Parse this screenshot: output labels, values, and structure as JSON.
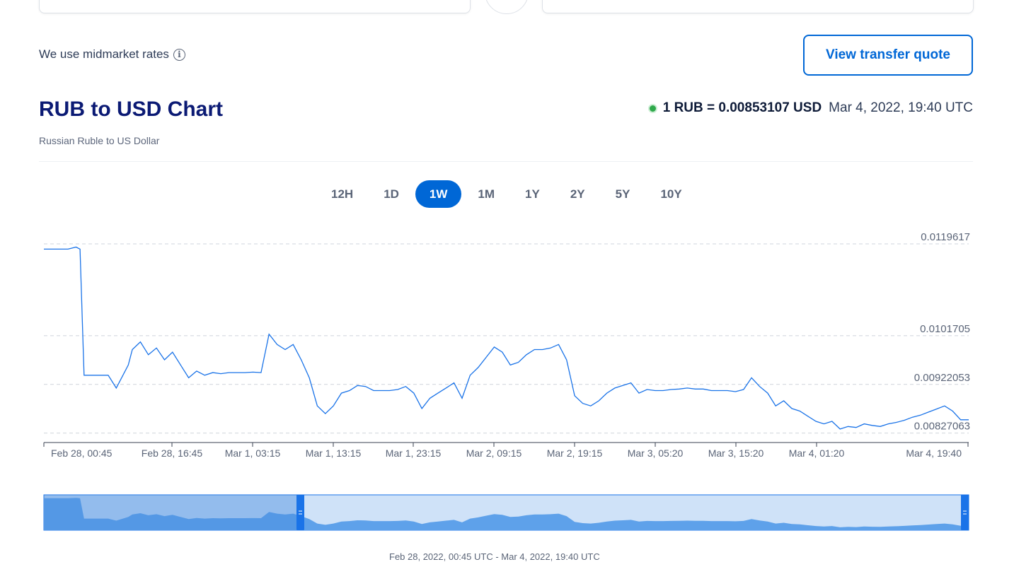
{
  "page": {
    "midmarket_text": "We use midmarket rates",
    "quote_button": "View transfer quote",
    "title": "RUB to USD Chart",
    "subtitle": "Russian Ruble to US Dollar",
    "rate": "1 RUB = 0.00853107 USD",
    "rate_time": "Mar 4, 2022, 19:40 UTC",
    "tabs": [
      "12H",
      "1D",
      "1W",
      "1M",
      "1Y",
      "2Y",
      "5Y",
      "10Y"
    ],
    "active_tab": "1W",
    "range_text": "Feb 28, 2022, 00:45 UTC - Mar 4, 2022, 19:40 UTC",
    "colors": {
      "accent": "#0067d6",
      "title": "#0b1a74",
      "live": "#2fa94b",
      "line": "#1a73e8"
    }
  },
  "chart_data": {
    "type": "line",
    "title": "RUB to USD Chart",
    "xlabel": "",
    "ylabel": "",
    "grid": true,
    "yticks": [
      "0.0119617",
      "0.0101705",
      "0.00922053",
      "0.00827063"
    ],
    "xticks": [
      "Feb 28, 00:45",
      "Feb 28, 16:45",
      "Mar 1, 03:15",
      "Mar 1, 13:15",
      "Mar 1, 23:15",
      "Mar 2, 09:15",
      "Mar 2, 19:15",
      "Mar 3, 05:20",
      "Mar 3, 15:20",
      "Mar 4, 01:20",
      "Mar 4, 19:40"
    ],
    "xlim": [
      0,
      115
    ],
    "ylim": [
      0.0081,
      0.0121
    ],
    "series": [
      {
        "x": [
          0,
          3,
          4,
          4.5,
          5,
          6,
          8,
          9,
          10,
          10.5,
          11,
          12,
          13,
          14,
          15,
          16,
          17,
          18,
          19,
          20,
          21,
          22,
          23,
          24,
          25,
          26,
          27,
          28,
          29,
          30,
          31,
          32,
          33,
          34,
          35,
          36,
          37,
          38,
          39,
          40,
          41,
          42,
          43,
          44,
          45,
          46,
          47,
          48,
          49,
          50,
          51,
          52,
          53,
          54,
          55,
          56,
          57,
          58,
          59,
          60,
          61,
          62,
          63,
          64,
          65,
          66,
          67,
          68,
          69,
          70,
          71,
          72,
          73,
          74,
          75,
          76,
          77,
          78,
          79,
          80,
          81,
          82,
          83,
          84,
          85,
          86,
          87,
          88,
          89,
          90,
          91,
          92,
          93,
          94,
          95,
          96,
          97,
          98,
          99,
          100,
          101,
          102,
          103,
          104,
          105,
          106,
          107,
          108,
          109,
          110,
          111,
          112,
          113,
          114,
          115
        ],
        "y": [
          0.01186,
          0.01186,
          0.0119,
          0.01186,
          0.0094,
          0.0094,
          0.0094,
          0.00915,
          0.00945,
          0.0096,
          0.0099,
          0.01005,
          0.0098,
          0.00993,
          0.0097,
          0.00985,
          0.0096,
          0.00935,
          0.00948,
          0.0094,
          0.00945,
          0.00943,
          0.00945,
          0.00945,
          0.00945,
          0.00946,
          0.00945,
          0.0102,
          0.01,
          0.0099,
          0.01,
          0.0097,
          0.00935,
          0.0088,
          0.00865,
          0.0088,
          0.00905,
          0.0091,
          0.0092,
          0.00918,
          0.0091,
          0.0091,
          0.0091,
          0.00912,
          0.00918,
          0.00905,
          0.00875,
          0.00895,
          0.00905,
          0.00915,
          0.00925,
          0.00895,
          0.0094,
          0.00955,
          0.00975,
          0.00995,
          0.00985,
          0.0096,
          0.00965,
          0.0098,
          0.0099,
          0.0099,
          0.00993,
          0.01,
          0.0097,
          0.009,
          0.00885,
          0.0088,
          0.0089,
          0.00905,
          0.00915,
          0.0092,
          0.00925,
          0.00905,
          0.00912,
          0.0091,
          0.0091,
          0.00912,
          0.00913,
          0.00915,
          0.00913,
          0.00913,
          0.0091,
          0.0091,
          0.0091,
          0.00908,
          0.00912,
          0.00935,
          0.00918,
          0.00905,
          0.0088,
          0.0089,
          0.00875,
          0.0087,
          0.0086,
          0.0085,
          0.00845,
          0.0085,
          0.00835,
          0.0084,
          0.00838,
          0.00845,
          0.00842,
          0.0084,
          0.00845,
          0.00848,
          0.00852,
          0.00858,
          0.00862,
          0.00868,
          0.00874,
          0.0088,
          0.0087,
          0.00853,
          0.00853
        ]
      }
    ]
  }
}
